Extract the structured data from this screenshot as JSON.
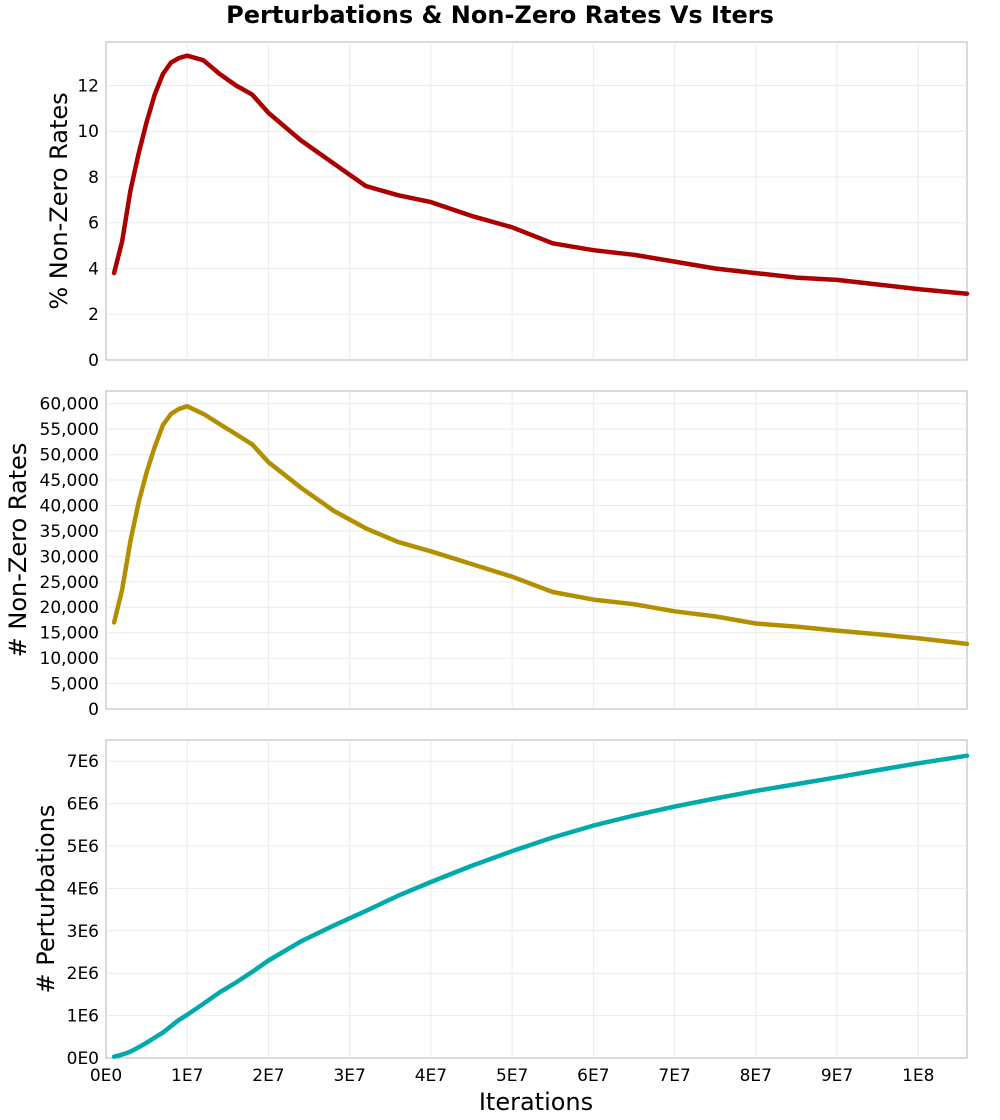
{
  "chart_data": {
    "type": "line",
    "title": "Perturbations & Non-Zero Rates Vs Iters",
    "xlabel": "Iterations",
    "xlim": [
      0,
      106000000
    ],
    "x_ticks": [
      0,
      10000000,
      20000000,
      30000000,
      40000000,
      50000000,
      60000000,
      70000000,
      80000000,
      90000000,
      100000000
    ],
    "x_tick_labels": [
      "0E0",
      "1E7",
      "2E7",
      "3E7",
      "4E7",
      "5E7",
      "6E7",
      "7E7",
      "8E7",
      "9E7",
      "1E8"
    ],
    "x": [
      1000000,
      2000000,
      3000000,
      4000000,
      5000000,
      6000000,
      7000000,
      8000000,
      9000000,
      10000000,
      12000000,
      14000000,
      16000000,
      18000000,
      20000000,
      24000000,
      28000000,
      32000000,
      36000000,
      40000000,
      45000000,
      50000000,
      55000000,
      60000000,
      65000000,
      70000000,
      75000000,
      80000000,
      85000000,
      90000000,
      95000000,
      100000000,
      106000000
    ],
    "panels": [
      {
        "ylabel": "% Non-Zero Rates",
        "ylim": [
          0,
          13.9
        ],
        "y_ticks": [
          0,
          2,
          4,
          6,
          8,
          10,
          12
        ],
        "y_tick_labels": [
          "0",
          "2",
          "4",
          "6",
          "8",
          "10",
          "12"
        ],
        "series": [
          {
            "name": "% Non-Zero Rates",
            "color": "#aa0000",
            "values": [
              3.8,
              5.2,
              7.4,
              9.0,
              10.4,
              11.6,
              12.5,
              13.0,
              13.2,
              13.3,
              13.1,
              12.5,
              12.0,
              11.6,
              10.8,
              9.6,
              8.6,
              7.6,
              7.2,
              6.9,
              6.3,
              5.8,
              5.1,
              4.8,
              4.6,
              4.3,
              4.0,
              3.8,
              3.6,
              3.5,
              3.3,
              3.1,
              2.9
            ]
          }
        ]
      },
      {
        "ylabel": "# Non-Zero Rates",
        "ylim": [
          0,
          62500
        ],
        "y_ticks": [
          0,
          5000,
          10000,
          15000,
          20000,
          25000,
          30000,
          35000,
          40000,
          45000,
          50000,
          55000,
          60000
        ],
        "y_tick_labels": [
          "0",
          "5,000",
          "10,000",
          "15,000",
          "20,000",
          "25,000",
          "30,000",
          "35,000",
          "40,000",
          "45,000",
          "50,000",
          "55,000",
          "60,000"
        ],
        "series": [
          {
            "name": "# Non-Zero Rates",
            "color": "#b38f00",
            "values": [
              17000,
              23500,
              33000,
              40500,
              46500,
              51500,
              55800,
              58000,
              59000,
              59500,
              58000,
              56000,
              54000,
              52000,
              48500,
              43500,
              39000,
              35500,
              32800,
              31000,
              28500,
              26000,
              23000,
              21500,
              20600,
              19200,
              18200,
              16800,
              16200,
              15400,
              14700,
              13900,
              12800
            ]
          }
        ]
      },
      {
        "ylabel": "# Perturbations",
        "ylim": [
          0,
          7500000
        ],
        "y_ticks": [
          0,
          1000000,
          2000000,
          3000000,
          4000000,
          5000000,
          6000000,
          7000000
        ],
        "y_tick_labels": [
          "0E0",
          "1E6",
          "2E6",
          "3E6",
          "4E6",
          "5E6",
          "6E6",
          "7E6"
        ],
        "series": [
          {
            "name": "# Perturbations",
            "color": "#00aaaa",
            "values": [
              30000,
              80000,
              150000,
              250000,
              360000,
              480000,
              600000,
              750000,
              900000,
              1020000,
              1280000,
              1550000,
              1780000,
              2030000,
              2300000,
              2750000,
              3120000,
              3470000,
              3830000,
              4150000,
              4530000,
              4880000,
              5200000,
              5480000,
              5720000,
              5930000,
              6120000,
              6300000,
              6460000,
              6620000,
              6790000,
              6950000,
              7130000
            ]
          }
        ]
      }
    ]
  }
}
